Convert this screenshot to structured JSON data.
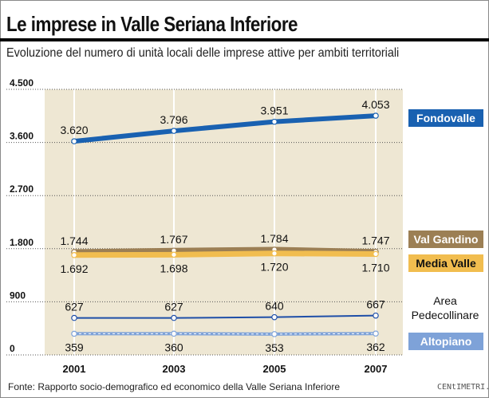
{
  "title": "Le imprese in Valle Seriana Inferiore",
  "subtitle": "Evoluzione del numero di unità locali delle imprese attive per ambiti territoriali",
  "source": "Fonte: Rapporto socio-demografico ed economico della Valle Seriana Inferiore",
  "watermark": "CENtIMETRI.it",
  "colors": {
    "plot_bg": "#eee7d3",
    "fondovalle": "#1961b1",
    "val_gandino": "#9c7f54",
    "media_valle": "#f1bd4f",
    "area_pedecollinare": "#1f4fa8",
    "altopiano": "#7ea2d8"
  },
  "chart_data": {
    "type": "line",
    "title": "Le imprese in Valle Seriana Inferiore",
    "subtitle": "Evoluzione del numero di unità locali delle imprese attive per ambiti territoriali",
    "xlabel": "",
    "ylabel": "",
    "categories": [
      "2001",
      "2003",
      "2005",
      "2007"
    ],
    "ylim": [
      0,
      4500
    ],
    "yticks": [
      0,
      900,
      1800,
      2700,
      3600,
      4500
    ],
    "ytick_labels": [
      "0",
      "900",
      "1.800",
      "2.700",
      "3.600",
      "4.500"
    ],
    "grid": true,
    "series": [
      {
        "name": "Fondovalle",
        "key": "fondovalle",
        "values": [
          3620,
          3796,
          3951,
          4053
        ],
        "labels": [
          "3.620",
          "3.796",
          "3.951",
          "4.053"
        ],
        "label_pos": "above"
      },
      {
        "name": "Val Gandino",
        "key": "val_gandino",
        "values": [
          1744,
          1767,
          1784,
          1747
        ],
        "labels": [
          "1.744",
          "1.767",
          "1.784",
          "1.747"
        ],
        "label_pos": "above"
      },
      {
        "name": "Media Valle",
        "key": "media_valle",
        "values": [
          1692,
          1698,
          1720,
          1710
        ],
        "labels": [
          "1.692",
          "1.698",
          "1.720",
          "1.710"
        ],
        "label_pos": "below"
      },
      {
        "name": "Area Pedecollinare",
        "key": "area_pedecollinare",
        "values": [
          627,
          627,
          640,
          667
        ],
        "labels": [
          "627",
          "627",
          "640",
          "667"
        ],
        "label_pos": "above"
      },
      {
        "name": "Altopiano",
        "key": "altopiano",
        "values": [
          359,
          360,
          353,
          362
        ],
        "labels": [
          "359",
          "360",
          "353",
          "362"
        ],
        "label_pos": "below"
      }
    ],
    "legend": [
      {
        "key": "fondovalle",
        "text": "Fondovalle",
        "style": "box"
      },
      {
        "key": "val_gandino",
        "text": "Val Gandino",
        "style": "box"
      },
      {
        "key": "media_valle",
        "text": "Media Valle",
        "style": "box"
      },
      {
        "key": "area_pedecollinare",
        "text": "Area Pedecollinare",
        "style": "plain"
      },
      {
        "key": "altopiano",
        "text": "Altopiano",
        "style": "box"
      }
    ]
  }
}
